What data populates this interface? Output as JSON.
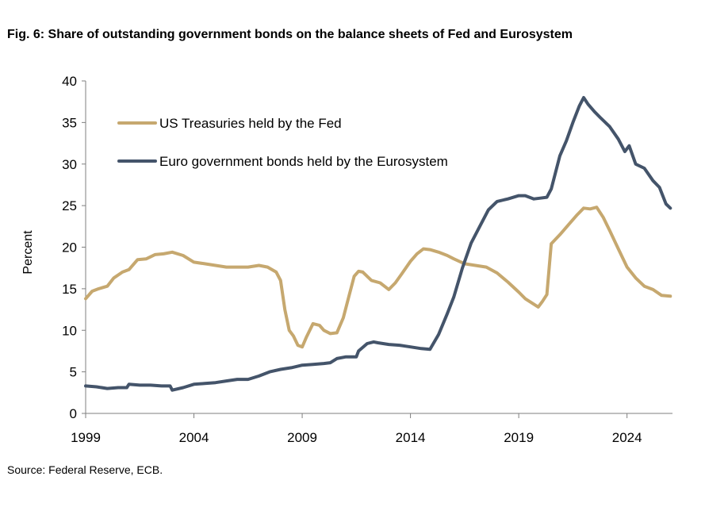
{
  "title": "Fig. 6: Share of outstanding government bonds on the balance sheets of Fed and Eurosystem",
  "source": "Source: Federal Reserve, ECB.",
  "chart_data": {
    "type": "line",
    "title": "Fig. 6: Share of outstanding government bonds on the balance sheets of Fed and Eurosystem",
    "xlabel": "",
    "ylabel": "Percent",
    "xlim": [
      1999,
      2026.1
    ],
    "ylim": [
      0,
      40
    ],
    "xticks": [
      1999,
      2004,
      2009,
      2014,
      2019,
      2024
    ],
    "xtick_labels": [
      "1999",
      "2004",
      "2009",
      "2014",
      "2019",
      "2024"
    ],
    "yticks": [
      0,
      5,
      10,
      15,
      20,
      25,
      30,
      35,
      40
    ],
    "grid": false,
    "legend_position": "upper-left",
    "series": [
      {
        "name": "US Treasuries held by the Fed",
        "color": "#C6A86F",
        "x": [
          1999.0,
          1999.3,
          1999.6,
          2000.0,
          2000.3,
          2000.7,
          2001.0,
          2001.4,
          2001.8,
          2002.2,
          2002.6,
          2003.0,
          2003.5,
          2004.0,
          2004.5,
          2005.0,
          2005.5,
          2006.0,
          2006.5,
          2007.0,
          2007.4,
          2007.8,
          2008.0,
          2008.2,
          2008.4,
          2008.6,
          2008.8,
          2009.0,
          2009.2,
          2009.5,
          2009.8,
          2010.0,
          2010.3,
          2010.6,
          2010.9,
          2011.2,
          2011.4,
          2011.6,
          2011.8,
          2012.2,
          2012.6,
          2013.0,
          2013.3,
          2013.6,
          2014.0,
          2014.3,
          2014.6,
          2014.9,
          2015.3,
          2015.7,
          2016.0,
          2016.5,
          2017.0,
          2017.5,
          2018.0,
          2018.5,
          2019.0,
          2019.3,
          2019.6,
          2019.9,
          2020.1,
          2020.3,
          2020.5,
          2020.9,
          2021.3,
          2021.7,
          2022.0,
          2022.3,
          2022.6,
          2022.9,
          2023.2,
          2023.6,
          2024.0,
          2024.4,
          2024.8,
          2025.2,
          2025.6,
          2026.0
        ],
        "values": [
          13.8,
          14.7,
          15.0,
          15.3,
          16.3,
          17.0,
          17.3,
          18.5,
          18.6,
          19.1,
          19.2,
          19.4,
          19.0,
          18.2,
          18.0,
          17.8,
          17.6,
          17.6,
          17.6,
          17.8,
          17.6,
          17.0,
          16.0,
          12.5,
          10.0,
          9.3,
          8.2,
          8.0,
          9.2,
          10.8,
          10.6,
          10.0,
          9.6,
          9.7,
          11.5,
          14.5,
          16.5,
          17.1,
          17.0,
          16.0,
          15.7,
          14.9,
          15.7,
          16.8,
          18.3,
          19.2,
          19.8,
          19.7,
          19.4,
          19.0,
          18.6,
          18.0,
          17.8,
          17.6,
          16.9,
          15.8,
          14.6,
          13.8,
          13.3,
          12.8,
          13.5,
          14.3,
          20.4,
          21.5,
          22.7,
          23.9,
          24.7,
          24.6,
          24.8,
          23.6,
          22.0,
          19.8,
          17.6,
          16.3,
          15.3,
          14.9,
          14.2,
          14.1
        ]
      },
      {
        "name": "Euro government bonds held by the Eurosystem",
        "color": "#44546A",
        "x": [
          1999.0,
          1999.5,
          2000.0,
          2000.5,
          2000.9,
          2001.0,
          2001.5,
          2002.0,
          2002.5,
          2002.9,
          2003.0,
          2003.5,
          2004.0,
          2004.5,
          2005.0,
          2005.5,
          2006.0,
          2006.5,
          2007.0,
          2007.5,
          2008.0,
          2008.5,
          2009.0,
          2009.5,
          2010.0,
          2010.3,
          2010.6,
          2011.0,
          2011.5,
          2011.6,
          2012.0,
          2012.3,
          2012.5,
          2013.0,
          2013.5,
          2014.0,
          2014.5,
          2014.9,
          2015.3,
          2015.7,
          2016.0,
          2016.4,
          2016.8,
          2017.2,
          2017.6,
          2018.0,
          2018.5,
          2019.0,
          2019.3,
          2019.7,
          2020.0,
          2020.3,
          2020.5,
          2020.9,
          2021.2,
          2021.5,
          2021.8,
          2022.0,
          2022.2,
          2022.5,
          2022.8,
          2023.2,
          2023.6,
          2023.9,
          2024.1,
          2024.4,
          2024.8,
          2025.2,
          2025.5,
          2025.8,
          2026.0
        ],
        "values": [
          3.3,
          3.2,
          3.0,
          3.1,
          3.1,
          3.5,
          3.4,
          3.4,
          3.3,
          3.3,
          2.8,
          3.1,
          3.5,
          3.6,
          3.7,
          3.9,
          4.1,
          4.1,
          4.5,
          5.0,
          5.3,
          5.5,
          5.8,
          5.9,
          6.0,
          6.1,
          6.6,
          6.8,
          6.8,
          7.5,
          8.4,
          8.6,
          8.5,
          8.3,
          8.2,
          8.0,
          7.8,
          7.7,
          9.5,
          12.0,
          14.0,
          17.5,
          20.5,
          22.5,
          24.5,
          25.5,
          25.8,
          26.2,
          26.2,
          25.8,
          25.9,
          26.0,
          27.0,
          31.0,
          32.8,
          35.0,
          37.0,
          38.0,
          37.2,
          36.3,
          35.5,
          34.5,
          33.0,
          31.5,
          32.2,
          30.0,
          29.5,
          28.0,
          27.2,
          25.2,
          24.7
        ]
      }
    ]
  }
}
